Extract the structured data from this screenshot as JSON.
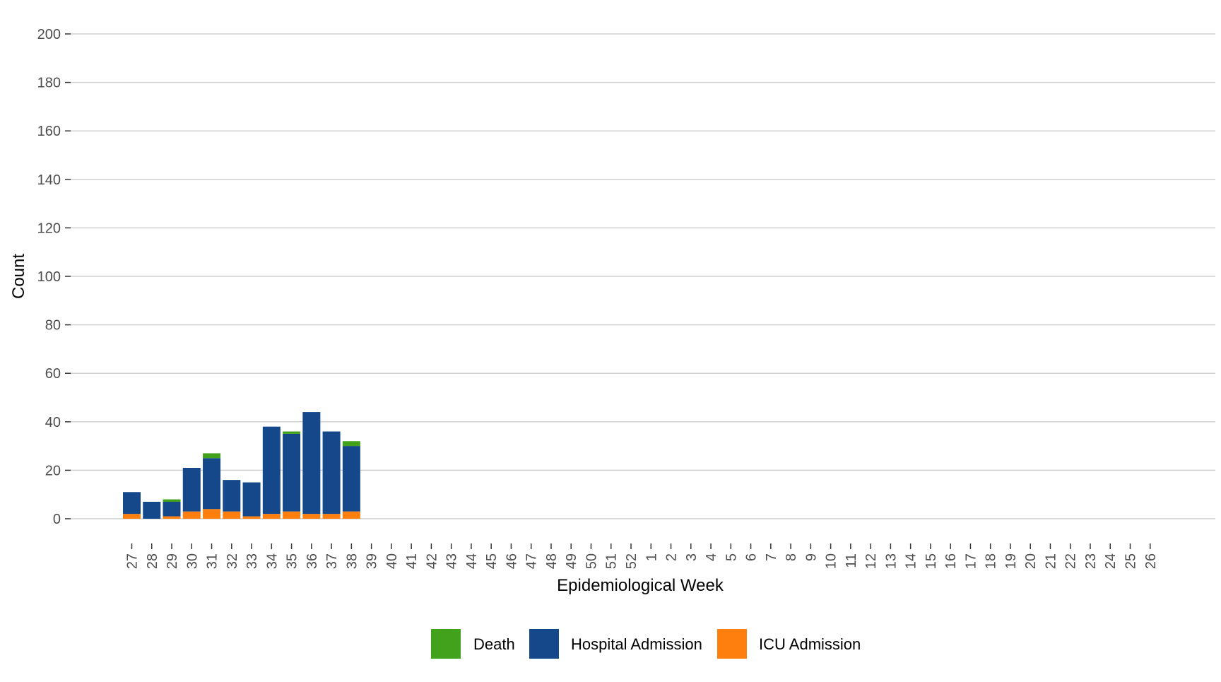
{
  "chart_data": {
    "type": "bar",
    "stacked": true,
    "title": "",
    "xlabel": "Epidemiological Week",
    "ylabel": "Count",
    "ylim": [
      0,
      200
    ],
    "yticks": [
      0,
      20,
      40,
      60,
      80,
      100,
      120,
      140,
      160,
      180,
      200
    ],
    "grid": "horizontal",
    "legend_position": "bottom",
    "categories": [
      "27",
      "28",
      "29",
      "30",
      "31",
      "32",
      "33",
      "34",
      "35",
      "36",
      "37",
      "38",
      "39",
      "40",
      "41",
      "42",
      "43",
      "44",
      "45",
      "46",
      "47",
      "48",
      "49",
      "50",
      "51",
      "52",
      "1",
      "2",
      "3",
      "4",
      "5",
      "6",
      "7",
      "8",
      "9",
      "10",
      "11",
      "12",
      "13",
      "14",
      "15",
      "16",
      "17",
      "18",
      "19",
      "20",
      "21",
      "22",
      "23",
      "24",
      "25",
      "26"
    ],
    "series": [
      {
        "name": "ICU Admission",
        "color": "#ff7f0e",
        "values": [
          2,
          0,
          1,
          3,
          4,
          3,
          1,
          2,
          3,
          2,
          2,
          3,
          0,
          0,
          0,
          0,
          0,
          0,
          0,
          0,
          0,
          0,
          0,
          0,
          0,
          0,
          0,
          0,
          0,
          0,
          0,
          0,
          0,
          0,
          0,
          0,
          0,
          0,
          0,
          0,
          0,
          0,
          0,
          0,
          0,
          0,
          0,
          0,
          0,
          0,
          0,
          0
        ]
      },
      {
        "name": "Hospital Admission",
        "color": "#14488b",
        "values": [
          9,
          7,
          6,
          18,
          21,
          13,
          14,
          36,
          32,
          42,
          34,
          27,
          0,
          0,
          0,
          0,
          0,
          0,
          0,
          0,
          0,
          0,
          0,
          0,
          0,
          0,
          0,
          0,
          0,
          0,
          0,
          0,
          0,
          0,
          0,
          0,
          0,
          0,
          0,
          0,
          0,
          0,
          0,
          0,
          0,
          0,
          0,
          0,
          0,
          0,
          0,
          0
        ]
      },
      {
        "name": "Death",
        "color": "#43a21b",
        "values": [
          0,
          0,
          1,
          0,
          2,
          0,
          0,
          0,
          1,
          0,
          0,
          2,
          0,
          0,
          0,
          0,
          0,
          0,
          0,
          0,
          0,
          0,
          0,
          0,
          0,
          0,
          0,
          0,
          0,
          0,
          0,
          0,
          0,
          0,
          0,
          0,
          0,
          0,
          0,
          0,
          0,
          0,
          0,
          0,
          0,
          0,
          0,
          0,
          0,
          0,
          0,
          0
        ]
      }
    ],
    "legend": [
      {
        "label": "Death",
        "color": "#43a21b"
      },
      {
        "label": "Hospital Admission",
        "color": "#14488b"
      },
      {
        "label": "ICU Admission",
        "color": "#ff7f0e"
      }
    ]
  }
}
